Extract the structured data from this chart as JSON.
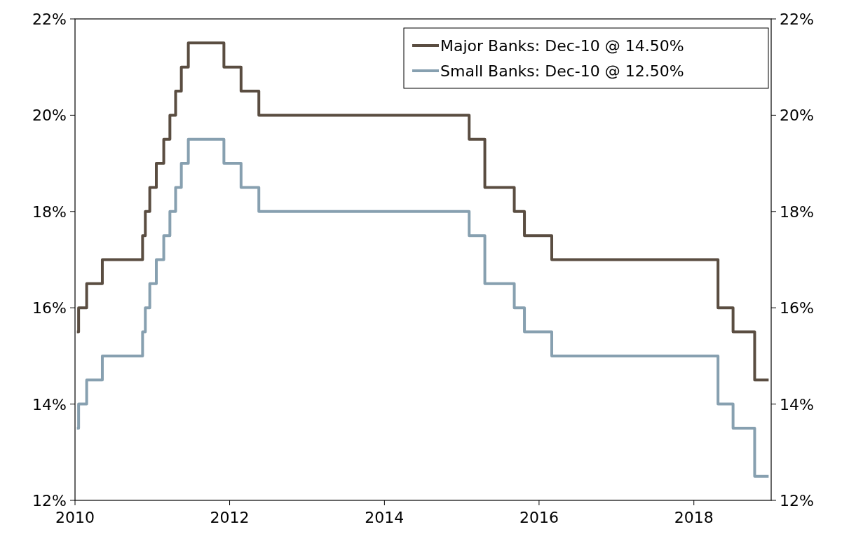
{
  "chart_data": {
    "type": "step",
    "xlim": [
      "2010-01-01",
      "2019-01-01"
    ],
    "xticks": [
      {
        "value": "2010",
        "label": "2010"
      },
      {
        "value": "2012",
        "label": "2012"
      },
      {
        "value": "2014",
        "label": "2014"
      },
      {
        "value": "2016",
        "label": "2016"
      },
      {
        "value": "2018",
        "label": "2018"
      }
    ],
    "ylim": [
      12,
      22
    ],
    "yticks": [
      {
        "value": 12,
        "label": "12%"
      },
      {
        "value": 14,
        "label": "14%"
      },
      {
        "value": 16,
        "label": "16%"
      },
      {
        "value": 18,
        "label": "18%"
      },
      {
        "value": 20,
        "label": "20%"
      },
      {
        "value": 22,
        "label": "22%"
      }
    ],
    "y2lim": [
      12,
      22
    ],
    "y2ticks": [
      {
        "value": 12,
        "label": "12%"
      },
      {
        "value": 14,
        "label": "14%"
      },
      {
        "value": 16,
        "label": "16%"
      },
      {
        "value": 18,
        "label": "18%"
      },
      {
        "value": 20,
        "label": "20%"
      },
      {
        "value": 22,
        "label": "22%"
      }
    ],
    "x": [
      "2010-01-10",
      "2010-01-18",
      "2010-02-25",
      "2010-05-10",
      "2010-11-16",
      "2010-11-29",
      "2010-12-20",
      "2011-01-20",
      "2011-02-24",
      "2011-03-25",
      "2011-04-21",
      "2011-05-18",
      "2011-06-20",
      "2011-12-05",
      "2012-02-24",
      "2012-05-18",
      "2015-02-05",
      "2015-04-20",
      "2015-09-06",
      "2015-10-24",
      "2016-03-01",
      "2018-04-25",
      "2018-07-05",
      "2018-10-15",
      "2018-12-20"
    ],
    "series": [
      {
        "name": "Major Banks: Dec-10 @ 14.50%",
        "color": "#5a4d41",
        "values": [
          15.5,
          16,
          16.5,
          17,
          17.5,
          18,
          18.5,
          19,
          19.5,
          20,
          20.5,
          21,
          21.5,
          21,
          20.5,
          20,
          19.5,
          18.5,
          18,
          17.5,
          17,
          16,
          15.5,
          14.5,
          14.5
        ]
      },
      {
        "name": "Small Banks: Dec-10 @ 12.50%",
        "color": "#87a0b0",
        "values": [
          13.5,
          14,
          14.5,
          15,
          15.5,
          16,
          16.5,
          17,
          17.5,
          18,
          18.5,
          19,
          19.5,
          19,
          18.5,
          18,
          17.5,
          16.5,
          16,
          15.5,
          15,
          14,
          13.5,
          12.5,
          12.5
        ]
      }
    ],
    "grid": false,
    "legend": "top right",
    "line_style": "solid",
    "marker": "none"
  }
}
